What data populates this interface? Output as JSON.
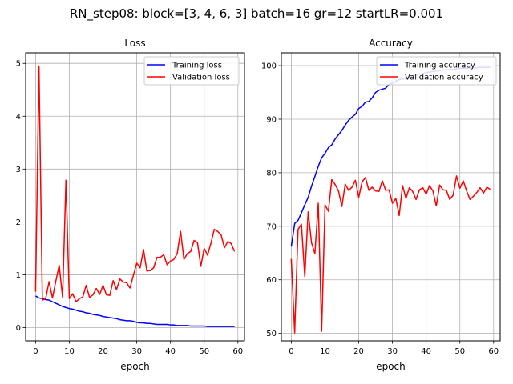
{
  "suptitle": "RN_step08: block=[3, 4, 6, 3] batch=16 gr=12 startLR=0.001",
  "colors": {
    "training": "#0000ff",
    "validation": "#ff0000",
    "grid": "#b0b0b0"
  },
  "chart_data": [
    {
      "type": "line",
      "title": "Loss",
      "xlabel": "epoch",
      "ylabel": "",
      "xlim": [
        -2.95,
        61.95
      ],
      "ylim": [
        -0.25,
        5.2
      ],
      "grid": true,
      "legend": "top-right",
      "xticks": [
        0,
        10,
        20,
        30,
        40,
        50,
        60
      ],
      "yticks": [
        0,
        1,
        2,
        3,
        4,
        5
      ],
      "x": [
        0,
        1,
        2,
        3,
        4,
        5,
        6,
        7,
        8,
        9,
        10,
        11,
        12,
        13,
        14,
        15,
        16,
        17,
        18,
        19,
        20,
        21,
        22,
        23,
        24,
        25,
        26,
        27,
        28,
        29,
        30,
        31,
        32,
        33,
        34,
        35,
        36,
        37,
        38,
        39,
        40,
        41,
        42,
        43,
        44,
        45,
        46,
        47,
        48,
        49,
        50,
        51,
        52,
        53,
        54,
        55,
        56,
        57,
        58,
        59
      ],
      "series": [
        {
          "name": "Training loss",
          "color": "#0000ff",
          "values": [
            0.6,
            0.56,
            0.55,
            0.53,
            0.52,
            0.49,
            0.46,
            0.43,
            0.4,
            0.38,
            0.36,
            0.35,
            0.33,
            0.31,
            0.3,
            0.28,
            0.27,
            0.25,
            0.24,
            0.23,
            0.21,
            0.2,
            0.19,
            0.18,
            0.17,
            0.15,
            0.14,
            0.13,
            0.13,
            0.12,
            0.1,
            0.09,
            0.09,
            0.08,
            0.08,
            0.07,
            0.06,
            0.06,
            0.06,
            0.06,
            0.05,
            0.05,
            0.04,
            0.04,
            0.04,
            0.04,
            0.03,
            0.03,
            0.03,
            0.03,
            0.03,
            0.02,
            0.02,
            0.02,
            0.02,
            0.02,
            0.02,
            0.02,
            0.02,
            0.02
          ]
        },
        {
          "name": "Validation loss",
          "color": "#ff0000",
          "values": [
            0.68,
            4.95,
            0.52,
            0.55,
            0.87,
            0.56,
            0.88,
            1.18,
            0.57,
            2.79,
            0.55,
            0.64,
            0.49,
            0.55,
            0.58,
            0.8,
            0.57,
            0.62,
            0.74,
            0.63,
            0.8,
            0.62,
            0.61,
            0.89,
            0.72,
            0.92,
            0.86,
            0.85,
            0.75,
            0.99,
            1.22,
            1.13,
            1.48,
            1.07,
            1.08,
            1.13,
            1.33,
            1.33,
            1.38,
            1.19,
            1.26,
            1.29,
            1.4,
            1.82,
            1.29,
            1.4,
            1.44,
            1.65,
            1.61,
            1.16,
            1.5,
            1.37,
            1.6,
            1.86,
            1.82,
            1.76,
            1.51,
            1.63,
            1.59,
            1.44
          ]
        }
      ]
    },
    {
      "type": "line",
      "title": "Accuracy",
      "xlabel": "epoch",
      "ylabel": "",
      "xlim": [
        -2.95,
        61.95
      ],
      "ylim": [
        48.6,
        102.4
      ],
      "grid": true,
      "legend": "top-right",
      "xticks": [
        0,
        10,
        20,
        30,
        40,
        50,
        60
      ],
      "yticks": [
        50,
        60,
        70,
        80,
        90,
        100
      ],
      "x": [
        0,
        1,
        2,
        3,
        4,
        5,
        6,
        7,
        8,
        9,
        10,
        11,
        12,
        13,
        14,
        15,
        16,
        17,
        18,
        19,
        20,
        21,
        22,
        23,
        24,
        25,
        26,
        27,
        28,
        29,
        30,
        31,
        32,
        33,
        34,
        35,
        36,
        37,
        38,
        39,
        40,
        41,
        42,
        43,
        44,
        45,
        46,
        47,
        48,
        49,
        50,
        51,
        52,
        53,
        54,
        55,
        56,
        57,
        58,
        59
      ],
      "series": [
        {
          "name": "Training accuracy",
          "color": "#0000ff",
          "values": [
            66.2,
            70.5,
            71.1,
            72.5,
            74.0,
            75.4,
            77.5,
            79.3,
            81.2,
            82.8,
            83.6,
            84.7,
            85.2,
            86.3,
            87.1,
            87.9,
            88.9,
            89.8,
            90.4,
            90.9,
            92.0,
            92.4,
            93.2,
            93.3,
            94.0,
            95.0,
            95.4,
            95.6,
            95.8,
            96.5,
            96.7,
            97.1,
            97.4,
            97.5,
            97.6,
            97.9,
            98.1,
            98.3,
            98.4,
            98.5,
            98.7,
            98.8,
            98.9,
            99.0,
            99.1,
            99.2,
            99.2,
            99.3,
            99.3,
            99.4,
            99.5,
            99.5,
            99.5,
            99.6,
            99.6,
            99.6,
            99.7,
            99.7,
            99.7,
            99.7
          ]
        },
        {
          "name": "Validation accuracy",
          "color": "#ff0000",
          "values": [
            63.9,
            50.1,
            69.4,
            70.4,
            60.6,
            72.7,
            66.9,
            64.9,
            74.3,
            50.4,
            74.0,
            72.8,
            78.7,
            77.8,
            76.6,
            73.7,
            77.9,
            76.7,
            77.3,
            78.6,
            75.4,
            78.3,
            79.1,
            76.7,
            77.3,
            76.6,
            76.5,
            78.5,
            76.7,
            76.8,
            74.3,
            75.2,
            72.0,
            77.6,
            75.2,
            77.2,
            76.5,
            75.0,
            76.8,
            77.2,
            76.0,
            77.6,
            76.6,
            73.8,
            77.7,
            76.8,
            76.7,
            75.0,
            75.8,
            79.4,
            77.1,
            78.5,
            76.6,
            75.0,
            75.6,
            76.3,
            77.2,
            76.2,
            77.3,
            76.9
          ]
        }
      ]
    }
  ]
}
